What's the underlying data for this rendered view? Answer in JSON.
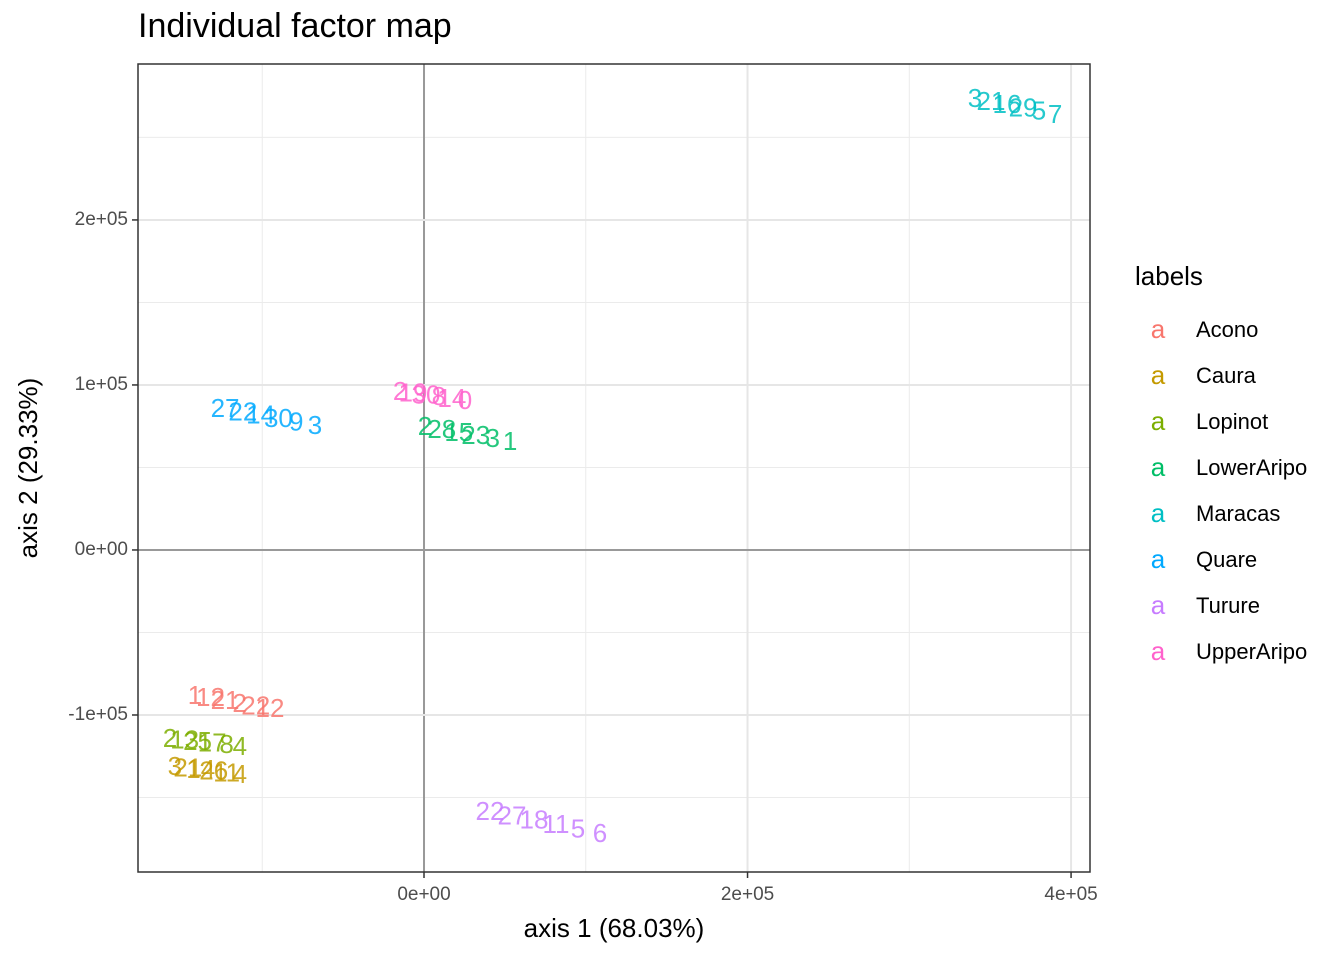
{
  "chart_data": {
    "type": "text-scatter",
    "title": "Individual factor map",
    "xlabel": "axis 1 (68.03%)",
    "ylabel": "axis 2 (29.33%)",
    "legend_title": "labels",
    "legend_key": "a",
    "legend_position": "right",
    "grid": true,
    "zero_lines": true,
    "xlim": [
      -176800,
      411700
    ],
    "ylim": [
      -195150,
      294500
    ],
    "xticks": [
      {
        "value": 0,
        "label": "0e+00"
      },
      {
        "value": 200000,
        "label": "2e+05"
      },
      {
        "value": 400000,
        "label": "4e+05"
      }
    ],
    "yticks": [
      {
        "value": -100000,
        "label": "-1e+05"
      },
      {
        "value": 0,
        "label": "0e+00"
      },
      {
        "value": 100000,
        "label": "1e+05"
      },
      {
        "value": 200000,
        "label": "2e+05"
      }
    ],
    "x_minor_grid": [
      -100000,
      100000,
      300000
    ],
    "y_minor_grid": [
      -150000,
      -50000,
      50000,
      150000,
      250000
    ],
    "series": [
      {
        "name": "Acono",
        "color": "#f8766d",
        "x": [
          -141600,
          -132000,
          -123000,
          -114000,
          -104000,
          -95200
        ],
        "y": [
          -89100,
          -90500,
          -92300,
          -94000,
          -95500,
          -97000
        ],
        "labels": [
          "1",
          "12",
          "21",
          "2",
          "22",
          "12"
        ]
      },
      {
        "name": "Caura",
        "color": "#c49a00",
        "x": [
          -154000,
          -146000,
          -138000,
          -130000,
          -122000,
          -113800
        ],
        "y": [
          -132100,
          -133000,
          -134000,
          -135000,
          -136000,
          -137000
        ],
        "labels": [
          "3",
          "21",
          "14",
          "26",
          "11",
          "4"
        ]
      },
      {
        "name": "Lopinot",
        "color": "#7cae00",
        "x": [
          -157000,
          -148000,
          -140000,
          -131000,
          -122000,
          -113800
        ],
        "y": [
          -115200,
          -116200,
          -117100,
          -118000,
          -119000,
          -120000
        ],
        "labels": [
          "2",
          "13",
          "25",
          "17",
          "8",
          "4"
        ]
      },
      {
        "name": "LowerAripo",
        "color": "#00be67",
        "x": [
          600,
          11000,
          21500,
          32000,
          42500,
          53200
        ],
        "y": [
          73900,
          72100,
          70300,
          68500,
          66700,
          64800
        ],
        "labels": [
          "2",
          "28",
          "15",
          "23",
          "3",
          "1"
        ]
      },
      {
        "name": "Maracas",
        "color": "#00bfc4",
        "x": [
          340600,
          350500,
          360400,
          370300,
          380200,
          390100
        ],
        "y": [
          272700,
          270800,
          268900,
          267000,
          265000,
          263000
        ],
        "labels": [
          "3",
          "21",
          "16",
          "29",
          "5",
          "7"
        ]
      },
      {
        "name": "Quare",
        "color": "#00a9ff",
        "x": [
          -123000,
          -112000,
          -101000,
          -90000,
          -79000,
          -67400
        ],
        "y": [
          84800,
          82700,
          80700,
          78600,
          76600,
          74500
        ],
        "labels": [
          "27",
          "22",
          "14",
          "30",
          "9",
          "3"
        ]
      },
      {
        "name": "Turure",
        "color": "#c77cff",
        "x": [
          40800,
          54400,
          68000,
          81600,
          95200,
          108800
        ],
        "y": [
          -159400,
          -162100,
          -164700,
          -167400,
          -170000,
          -172700
        ],
        "labels": [
          "22",
          "27",
          "18",
          "11",
          "5",
          "6"
        ]
      },
      {
        "name": "UpperAripo",
        "color": "#ff61cc",
        "x": [
          -14800,
          -6800,
          1200,
          9200,
          17200,
          25300
        ],
        "y": [
          95200,
          94100,
          93000,
          91900,
          90800,
          89700
        ],
        "labels": [
          "2",
          "19",
          "30",
          "8",
          "14",
          "0"
        ]
      }
    ]
  }
}
